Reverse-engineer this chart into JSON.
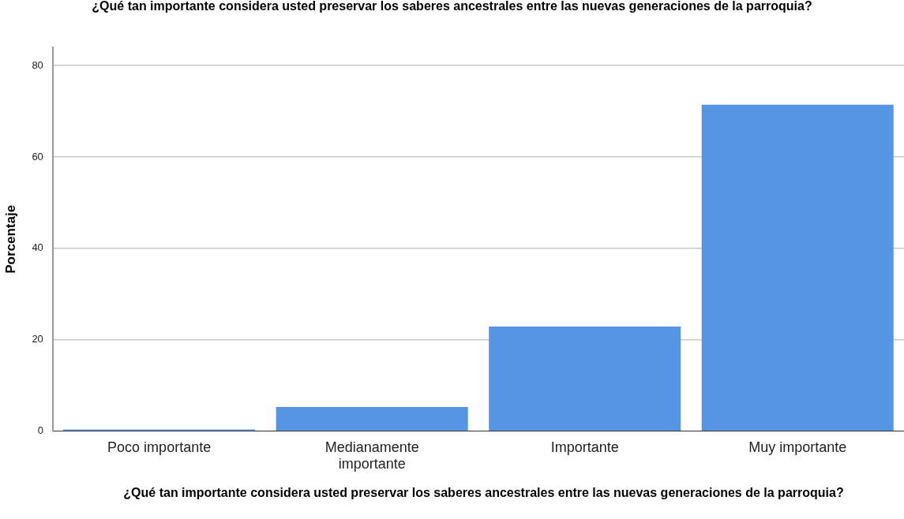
{
  "chart_data": {
    "type": "bar",
    "title": "¿Qué tan importante considera usted preservar los saberes ancestrales entre las nuevas generaciones de la parroquia?",
    "xlabel": "¿Qué tan importante considera usted preservar los saberes ancestrales entre las nuevas generaciones de la parroquia?",
    "ylabel": "Porcentaje",
    "categories": [
      "Poco importante",
      "Medianamente importante",
      "Importante",
      "Muy importante"
    ],
    "values": [
      0.4,
      5.3,
      22.9,
      71.4
    ],
    "color": "#5595e3",
    "ylim": [
      0,
      84
    ],
    "yticks": [
      0,
      20,
      40,
      60,
      80
    ],
    "grid": "y",
    "legend": false
  }
}
